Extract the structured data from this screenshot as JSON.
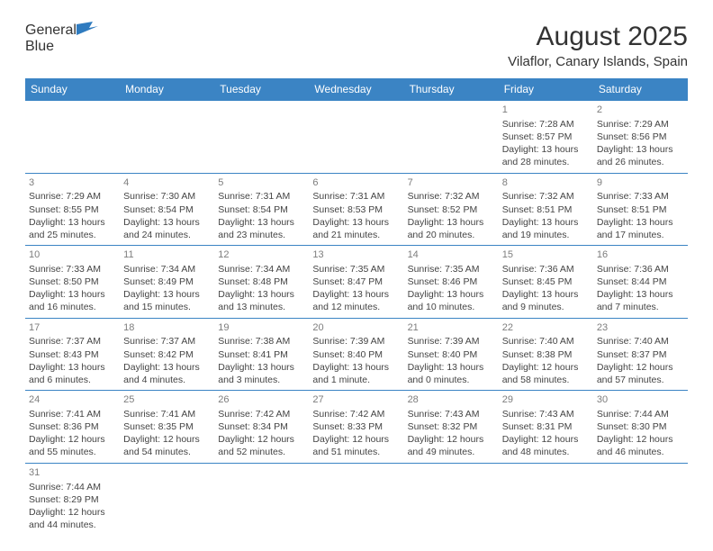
{
  "logo": {
    "text_general": "General",
    "text_blue": "Blue",
    "flag_color": "#2f7bbf"
  },
  "header": {
    "month_title": "August 2025",
    "location": "Vilaflor, Canary Islands, Spain"
  },
  "colors": {
    "header_bg": "#3b84c4",
    "header_text": "#ffffff",
    "border": "#3b84c4",
    "daynum": "#7d7d7d",
    "body_text": "#444444"
  },
  "day_names": [
    "Sunday",
    "Monday",
    "Tuesday",
    "Wednesday",
    "Thursday",
    "Friday",
    "Saturday"
  ],
  "first_weekday_index": 5,
  "days_in_month": 31,
  "days": {
    "1": {
      "sunrise": "7:28 AM",
      "sunset": "8:57 PM",
      "daylight": "13 hours and 28 minutes."
    },
    "2": {
      "sunrise": "7:29 AM",
      "sunset": "8:56 PM",
      "daylight": "13 hours and 26 minutes."
    },
    "3": {
      "sunrise": "7:29 AM",
      "sunset": "8:55 PM",
      "daylight": "13 hours and 25 minutes."
    },
    "4": {
      "sunrise": "7:30 AM",
      "sunset": "8:54 PM",
      "daylight": "13 hours and 24 minutes."
    },
    "5": {
      "sunrise": "7:31 AM",
      "sunset": "8:54 PM",
      "daylight": "13 hours and 23 minutes."
    },
    "6": {
      "sunrise": "7:31 AM",
      "sunset": "8:53 PM",
      "daylight": "13 hours and 21 minutes."
    },
    "7": {
      "sunrise": "7:32 AM",
      "sunset": "8:52 PM",
      "daylight": "13 hours and 20 minutes."
    },
    "8": {
      "sunrise": "7:32 AM",
      "sunset": "8:51 PM",
      "daylight": "13 hours and 19 minutes."
    },
    "9": {
      "sunrise": "7:33 AM",
      "sunset": "8:51 PM",
      "daylight": "13 hours and 17 minutes."
    },
    "10": {
      "sunrise": "7:33 AM",
      "sunset": "8:50 PM",
      "daylight": "13 hours and 16 minutes."
    },
    "11": {
      "sunrise": "7:34 AM",
      "sunset": "8:49 PM",
      "daylight": "13 hours and 15 minutes."
    },
    "12": {
      "sunrise": "7:34 AM",
      "sunset": "8:48 PM",
      "daylight": "13 hours and 13 minutes."
    },
    "13": {
      "sunrise": "7:35 AM",
      "sunset": "8:47 PM",
      "daylight": "13 hours and 12 minutes."
    },
    "14": {
      "sunrise": "7:35 AM",
      "sunset": "8:46 PM",
      "daylight": "13 hours and 10 minutes."
    },
    "15": {
      "sunrise": "7:36 AM",
      "sunset": "8:45 PM",
      "daylight": "13 hours and 9 minutes."
    },
    "16": {
      "sunrise": "7:36 AM",
      "sunset": "8:44 PM",
      "daylight": "13 hours and 7 minutes."
    },
    "17": {
      "sunrise": "7:37 AM",
      "sunset": "8:43 PM",
      "daylight": "13 hours and 6 minutes."
    },
    "18": {
      "sunrise": "7:37 AM",
      "sunset": "8:42 PM",
      "daylight": "13 hours and 4 minutes."
    },
    "19": {
      "sunrise": "7:38 AM",
      "sunset": "8:41 PM",
      "daylight": "13 hours and 3 minutes."
    },
    "20": {
      "sunrise": "7:39 AM",
      "sunset": "8:40 PM",
      "daylight": "13 hours and 1 minute."
    },
    "21": {
      "sunrise": "7:39 AM",
      "sunset": "8:40 PM",
      "daylight": "13 hours and 0 minutes."
    },
    "22": {
      "sunrise": "7:40 AM",
      "sunset": "8:38 PM",
      "daylight": "12 hours and 58 minutes."
    },
    "23": {
      "sunrise": "7:40 AM",
      "sunset": "8:37 PM",
      "daylight": "12 hours and 57 minutes."
    },
    "24": {
      "sunrise": "7:41 AM",
      "sunset": "8:36 PM",
      "daylight": "12 hours and 55 minutes."
    },
    "25": {
      "sunrise": "7:41 AM",
      "sunset": "8:35 PM",
      "daylight": "12 hours and 54 minutes."
    },
    "26": {
      "sunrise": "7:42 AM",
      "sunset": "8:34 PM",
      "daylight": "12 hours and 52 minutes."
    },
    "27": {
      "sunrise": "7:42 AM",
      "sunset": "8:33 PM",
      "daylight": "12 hours and 51 minutes."
    },
    "28": {
      "sunrise": "7:43 AM",
      "sunset": "8:32 PM",
      "daylight": "12 hours and 49 minutes."
    },
    "29": {
      "sunrise": "7:43 AM",
      "sunset": "8:31 PM",
      "daylight": "12 hours and 48 minutes."
    },
    "30": {
      "sunrise": "7:44 AM",
      "sunset": "8:30 PM",
      "daylight": "12 hours and 46 minutes."
    },
    "31": {
      "sunrise": "7:44 AM",
      "sunset": "8:29 PM",
      "daylight": "12 hours and 44 minutes."
    }
  },
  "labels": {
    "sunrise": "Sunrise:",
    "sunset": "Sunset:",
    "daylight": "Daylight:"
  }
}
